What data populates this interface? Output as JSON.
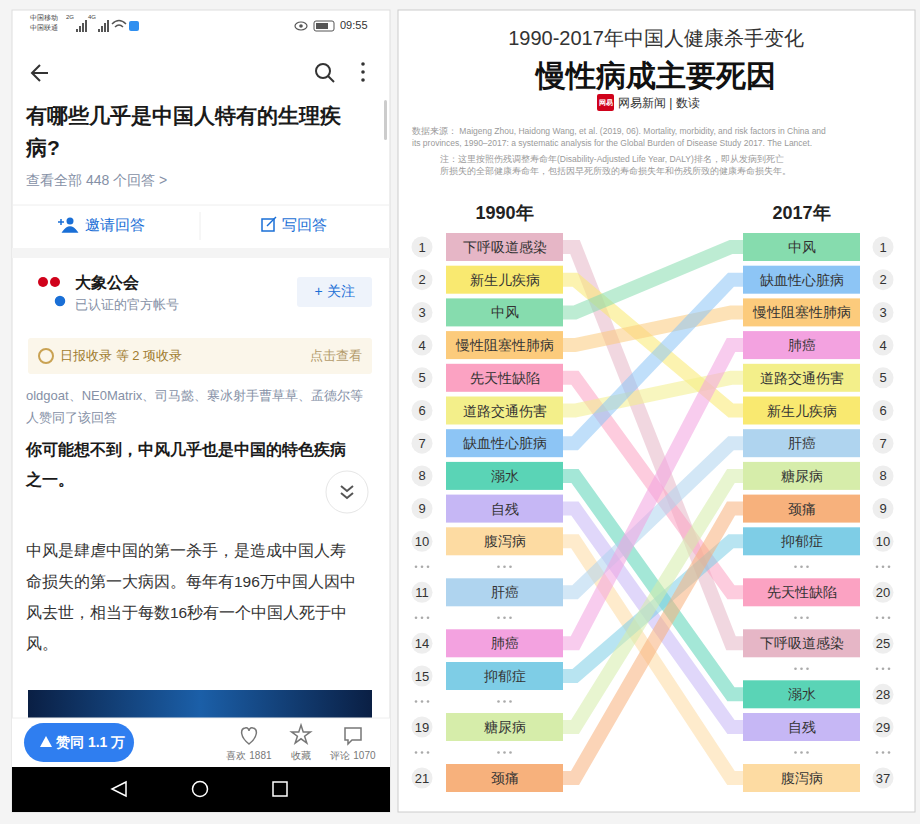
{
  "screenshot": {
    "status_bar": {
      "carriers": [
        "中国移动",
        "中国联通"
      ],
      "network": [
        "2G",
        "4G"
      ],
      "time": "09:55"
    },
    "question": {
      "title": "有哪些几乎是中国人特有的生理疾病?",
      "answers": "查看全部 448 个回答 >"
    },
    "actions": [
      "邀请回答",
      "写回答"
    ],
    "author": {
      "name": "大象公会",
      "desc": "已认证的官方帐号",
      "follow": "+ 关注"
    },
    "collection": {
      "text": "日报收录 等 2 项收录",
      "link": "点击查看"
    },
    "voters": "oldgoat、NE0Matrix、司马懿、寒冰射手曹草草、孟德尔等人赞同了该回答",
    "lead": "你可能想不到，中风几乎也是中国的特色疾病之一。",
    "body": "中风是肆虐中国的第一杀手，是造成中国人寿命损失的第一大病因。每年有196万中国人因中风去世，相当于每数16秒有一个中国人死于中风。",
    "bottom_bar": {
      "vote": "赞同 1.1 万",
      "like": "喜欢 1881",
      "save": "收藏",
      "comment": "评论 1070"
    }
  },
  "chart_data": {
    "type": "bump",
    "title": "1990-2017年中国人健康杀手变化",
    "subtitle": "慢性病成主要死因",
    "logo": "网易",
    "brand": "网易新闻 | 数读",
    "source": [
      "数据来源： Maigeng Zhou, Haidong Wang, et al. (2019, 06). Mortality, morbidity, and risk factors in China and",
      "its provinces, 1990–2017: a systematic analysis for the Global Burden of Disease Study 2017. The Lancet."
    ],
    "note": [
      "注：这里按照伤残调整寿命年(Disability-Adjusted Life Year, DALY)排名，即从发病到死亡",
      "所损失的全部健康寿命年，包括因早死所致的寿命损失年和伤残所致的健康寿命损失年。"
    ],
    "categories": [
      "1990年",
      "2017年"
    ],
    "series": [
      {
        "name": "下呼吸道感染",
        "color": "#e6b6c6",
        "values": [
          1,
          25
        ]
      },
      {
        "name": "新生儿疾病",
        "color": "#f9e970",
        "values": [
          2,
          6
        ]
      },
      {
        "name": "中风",
        "color": "#86dcae",
        "values": [
          3,
          1
        ]
      },
      {
        "name": "慢性阻塞性肺病",
        "color": "#fccb7c",
        "values": [
          4,
          3
        ]
      },
      {
        "name": "先天性缺陷",
        "color": "#fba2c2",
        "values": [
          5,
          20
        ]
      },
      {
        "name": "道路交通伤害",
        "color": "#f3ef8a",
        "values": [
          6,
          5
        ]
      },
      {
        "name": "缺血性心脏病",
        "color": "#8dc5f5",
        "values": [
          7,
          2
        ]
      },
      {
        "name": "溺水",
        "color": "#5ad4b6",
        "values": [
          8,
          28
        ]
      },
      {
        "name": "自残",
        "color": "#c6b7f5",
        "values": [
          9,
          29
        ]
      },
      {
        "name": "腹泻病",
        "color": "#fddba2",
        "values": [
          10,
          37
        ]
      },
      {
        "name": "肝癌",
        "color": "#afd4ef",
        "values": [
          11,
          7
        ]
      },
      {
        "name": "肺癌",
        "color": "#f3a2e0",
        "values": [
          14,
          4
        ]
      },
      {
        "name": "抑郁症",
        "color": "#7ecde6",
        "values": [
          15,
          10
        ]
      },
      {
        "name": "糖尿病",
        "color": "#d6edaa",
        "values": [
          19,
          8
        ]
      },
      {
        "name": "颈痛",
        "color": "#f7b17c",
        "values": [
          21,
          9
        ]
      }
    ]
  }
}
